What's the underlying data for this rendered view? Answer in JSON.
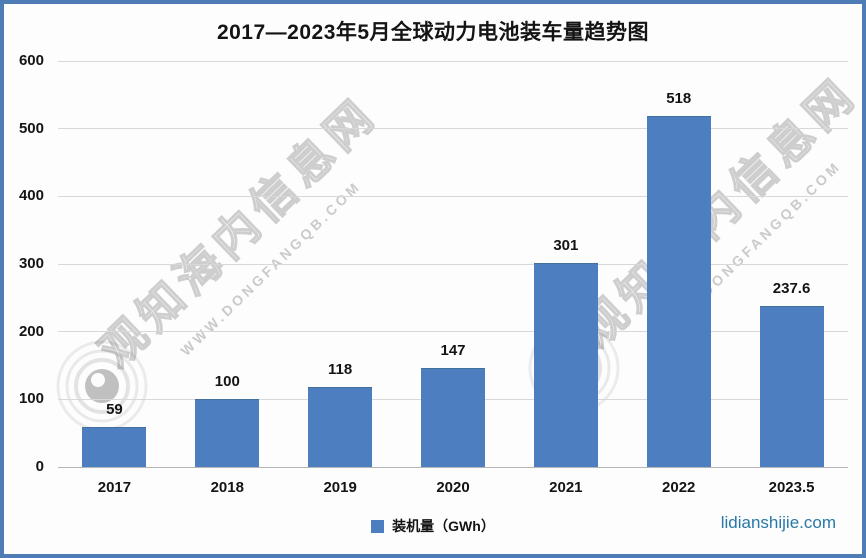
{
  "title": "2017—2023年5月全球动力电池装车量趋势图",
  "legend": {
    "label": "装机量（GWh）"
  },
  "site_label": "lidianshijie.com",
  "watermark": {
    "big": "观知海内信息网",
    "small": "WWW.DONGFANGQB.COM"
  },
  "colors": {
    "bar": "#4d7ebf",
    "frame_border": "#4e7cb5",
    "site_text": "#2878a8",
    "gridline": "#d8d8d8"
  },
  "chart_data": {
    "type": "bar",
    "title": "2017—2023年5月全球动力电池装车量趋势图",
    "categories": [
      "2017",
      "2018",
      "2019",
      "2020",
      "2021",
      "2022",
      "2023.5"
    ],
    "values": [
      59,
      100,
      118,
      147,
      301,
      518,
      237.6
    ],
    "series_name": "装机量（GWh）",
    "xlabel": "",
    "ylabel": "",
    "ylim": [
      0,
      600
    ],
    "yticks": [
      0,
      100,
      200,
      300,
      400,
      500,
      600
    ],
    "grid": true,
    "legend_position": "bottom"
  }
}
